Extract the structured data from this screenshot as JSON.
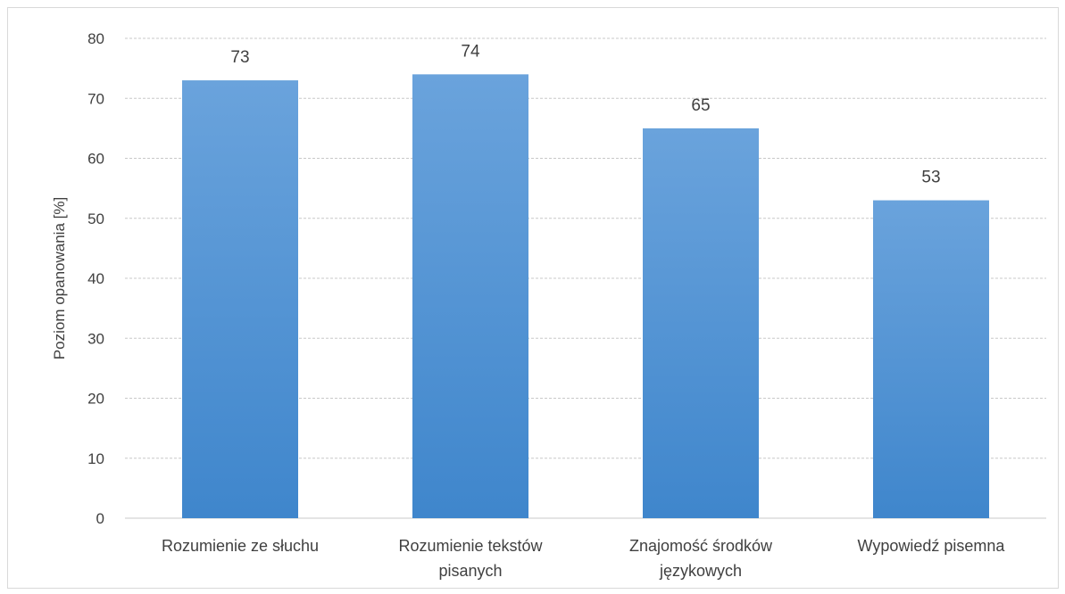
{
  "chart_data": {
    "type": "bar",
    "title": "",
    "xlabel": "",
    "ylabel": "Poziom opanowania [%]",
    "categories": [
      [
        "Rozumienie ze słuchu"
      ],
      [
        "Rozumienie tekstów",
        "pisanych"
      ],
      [
        "Znajomość środków",
        "językowych"
      ],
      [
        "Wypowiedź pisemna"
      ]
    ],
    "values": [
      73,
      74,
      65,
      53
    ],
    "data_labels": [
      "73",
      "74",
      "65",
      "53"
    ],
    "ylim": [
      0,
      80
    ],
    "yticks": [
      0,
      10,
      20,
      30,
      40,
      50,
      60,
      70,
      80
    ],
    "grid": true,
    "legend": "none",
    "colors": {
      "bar_top": "#6aa3dc",
      "bar_bottom": "#3f86cc",
      "grid": "#c8c8c8",
      "text": "#404040"
    }
  }
}
